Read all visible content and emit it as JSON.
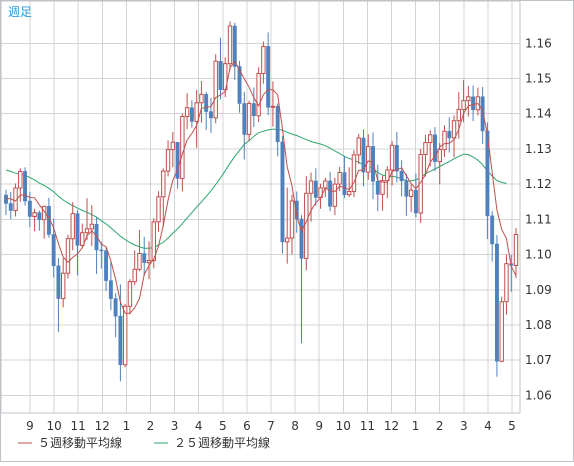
{
  "chart_data": {
    "type": "candlestick",
    "period_label": "週足",
    "ylim": [
      1.055,
      1.172
    ],
    "y_ticks": [
      "1.06",
      "1.07",
      "1.08",
      "1.09",
      "1.10",
      "1.11",
      "1.12",
      "1.13",
      "1.14",
      "1.15",
      "1.16"
    ],
    "x_tick_labels": [
      "9",
      "10",
      "11",
      "12",
      "1",
      "2",
      "3",
      "4",
      "5",
      "6",
      "7",
      "8",
      "9",
      "10",
      "11",
      "12",
      "1",
      "2",
      "3",
      "4",
      "5"
    ],
    "grid": true,
    "colors": {
      "up": "#c0504d",
      "down": "#4f81bd",
      "ma5": "#c0504d",
      "ma25": "#2ea66e",
      "grid": "#d4d4d4",
      "border": "#bfc3c8",
      "axis_text": "#333333",
      "period_label": "#2e9bd6"
    },
    "legend": [
      {
        "label": "５週移動平均線",
        "color": "#c0504d"
      },
      {
        "label": "２５週移動平均線",
        "color": "#2ea66e"
      }
    ],
    "candles": [
      [
        1.1169,
        1.1184,
        1.1112,
        1.1145
      ],
      [
        1.1145,
        1.1178,
        1.1101,
        1.1125
      ],
      [
        1.1125,
        1.1202,
        1.1108,
        1.1189
      ],
      [
        1.1189,
        1.1245,
        1.115,
        1.1236
      ],
      [
        1.1236,
        1.1248,
        1.1139,
        1.1152
      ],
      [
        1.1152,
        1.1178,
        1.1078,
        1.1108
      ],
      [
        1.1108,
        1.113,
        1.1066,
        1.1119
      ],
      [
        1.1119,
        1.1125,
        1.1068,
        1.1099
      ],
      [
        1.1099,
        1.1139,
        1.1045,
        1.1137
      ],
      [
        1.1137,
        1.1161,
        1.1048,
        1.1057
      ],
      [
        1.1057,
        1.1102,
        1.0935,
        1.0968
      ],
      [
        1.0968,
        1.099,
        1.078,
        1.0875
      ],
      [
        1.0875,
        1.099,
        1.085,
        1.0947
      ],
      [
        1.0947,
        1.1056,
        1.0932,
        1.1045
      ],
      [
        1.1045,
        1.1149,
        1.1012,
        1.1116
      ],
      [
        1.1116,
        1.1126,
        1.0941,
        1.1026
      ],
      [
        1.1026,
        1.1088,
        1.102,
        1.1062
      ],
      [
        1.1062,
        1.116,
        1.1041,
        1.1073
      ],
      [
        1.1073,
        1.114,
        1.1024,
        1.1086
      ],
      [
        1.1086,
        1.1105,
        1.0945,
        1.1013
      ],
      [
        1.1013,
        1.1037,
        1.096,
        1.1011
      ],
      [
        1.1011,
        1.102,
        1.0896,
        1.0926
      ],
      [
        1.0926,
        1.098,
        1.0842,
        1.0875
      ],
      [
        1.0875,
        1.089,
        1.0765,
        1.0825
      ],
      [
        1.0825,
        1.0915,
        1.064,
        1.0687
      ],
      [
        1.0687,
        1.086,
        1.068,
        1.0853
      ],
      [
        1.0853,
        1.093,
        1.083,
        1.0923
      ],
      [
        1.0923,
        1.1012,
        1.0913,
        1.0958
      ],
      [
        1.0958,
        1.107,
        1.0953,
        1.1003
      ],
      [
        1.1003,
        1.105,
        1.094,
        1.0977
      ],
      [
        1.0977,
        1.1037,
        1.093,
        1.0983
      ],
      [
        1.0983,
        1.1103,
        1.0961,
        1.1093
      ],
      [
        1.1093,
        1.118,
        1.1065,
        1.1164
      ],
      [
        1.1164,
        1.1245,
        1.1079,
        1.1237
      ],
      [
        1.1237,
        1.1324,
        1.1222,
        1.1298
      ],
      [
        1.1298,
        1.1348,
        1.1248,
        1.1319
      ],
      [
        1.1319,
        1.1308,
        1.1187,
        1.1216
      ],
      [
        1.1216,
        1.14,
        1.1179,
        1.1392
      ],
      [
        1.1392,
        1.1458,
        1.1356,
        1.1417
      ],
      [
        1.1417,
        1.1438,
        1.136,
        1.1378
      ],
      [
        1.1378,
        1.1468,
        1.1303,
        1.1431
      ],
      [
        1.1431,
        1.1493,
        1.1374,
        1.1455
      ],
      [
        1.1455,
        1.1462,
        1.1354,
        1.1406
      ],
      [
        1.1406,
        1.1445,
        1.1345,
        1.1388
      ],
      [
        1.1388,
        1.1569,
        1.1373,
        1.1549
      ],
      [
        1.1549,
        1.1616,
        1.144,
        1.1468
      ],
      [
        1.1468,
        1.156,
        1.1447,
        1.1542
      ],
      [
        1.1542,
        1.1662,
        1.1524,
        1.1649
      ],
      [
        1.1649,
        1.1658,
        1.1496,
        1.1534
      ],
      [
        1.1534,
        1.155,
        1.1403,
        1.1429
      ],
      [
        1.1429,
        1.1462,
        1.127,
        1.1341
      ],
      [
        1.1341,
        1.1437,
        1.1322,
        1.1429
      ],
      [
        1.1429,
        1.1474,
        1.1362,
        1.1394
      ],
      [
        1.1394,
        1.1532,
        1.1376,
        1.1514
      ],
      [
        1.1514,
        1.1605,
        1.1485,
        1.1591
      ],
      [
        1.1591,
        1.1631,
        1.1396,
        1.1418
      ],
      [
        1.1418,
        1.1492,
        1.1363,
        1.1421
      ],
      [
        1.1421,
        1.1429,
        1.1279,
        1.132
      ],
      [
        1.132,
        1.1336,
        1.1003,
        1.1036
      ],
      [
        1.1036,
        1.119,
        1.0974,
        1.1047
      ],
      [
        1.1047,
        1.117,
        1.1,
        1.1152
      ],
      [
        1.1152,
        1.1179,
        1.1062,
        1.1101
      ],
      [
        1.1101,
        1.1112,
        1.0748,
        1.0989
      ],
      [
        1.0989,
        1.1223,
        1.0955,
        1.1174
      ],
      [
        1.1174,
        1.1233,
        1.1093,
        1.1209
      ],
      [
        1.1209,
        1.1245,
        1.1139,
        1.1162
      ],
      [
        1.1162,
        1.1201,
        1.113,
        1.1189
      ],
      [
        1.1189,
        1.1218,
        1.1163,
        1.1209
      ],
      [
        1.1209,
        1.1235,
        1.1123,
        1.1137
      ],
      [
        1.1137,
        1.1218,
        1.1112,
        1.12
      ],
      [
        1.12,
        1.1249,
        1.118,
        1.1233
      ],
      [
        1.1233,
        1.128,
        1.116,
        1.117
      ],
      [
        1.117,
        1.1248,
        1.1163,
        1.1179
      ],
      [
        1.1179,
        1.1296,
        1.1163,
        1.1283
      ],
      [
        1.1283,
        1.1343,
        1.1257,
        1.1331
      ],
      [
        1.1331,
        1.1356,
        1.1193,
        1.1234
      ],
      [
        1.1234,
        1.1342,
        1.1212,
        1.1307
      ],
      [
        1.1307,
        1.1347,
        1.1157,
        1.1208
      ],
      [
        1.1208,
        1.1255,
        1.1123,
        1.1171
      ],
      [
        1.1171,
        1.1224,
        1.1124,
        1.121
      ],
      [
        1.121,
        1.1251,
        1.116,
        1.124
      ],
      [
        1.124,
        1.1322,
        1.1196,
        1.131
      ],
      [
        1.131,
        1.1348,
        1.1205,
        1.1237
      ],
      [
        1.1237,
        1.1268,
        1.1165,
        1.1209
      ],
      [
        1.1209,
        1.123,
        1.111,
        1.1165
      ],
      [
        1.1165,
        1.1199,
        1.1121,
        1.1183
      ],
      [
        1.1183,
        1.123,
        1.1106,
        1.1118
      ],
      [
        1.1118,
        1.13,
        1.109,
        1.1284
      ],
      [
        1.1284,
        1.134,
        1.1222,
        1.1318
      ],
      [
        1.1318,
        1.1353,
        1.125,
        1.134
      ],
      [
        1.134,
        1.1362,
        1.1237,
        1.1264
      ],
      [
        1.1264,
        1.1317,
        1.12,
        1.1298
      ],
      [
        1.1298,
        1.1367,
        1.1277,
        1.135
      ],
      [
        1.135,
        1.139,
        1.129,
        1.1331
      ],
      [
        1.1331,
        1.1395,
        1.1276,
        1.138
      ],
      [
        1.138,
        1.1461,
        1.1329,
        1.1412
      ],
      [
        1.1412,
        1.1495,
        1.1376,
        1.1437
      ],
      [
        1.1437,
        1.1479,
        1.1392,
        1.1448
      ],
      [
        1.1448,
        1.148,
        1.1379,
        1.1411
      ],
      [
        1.1411,
        1.1474,
        1.1395,
        1.1448
      ],
      [
        1.1448,
        1.1476,
        1.1314,
        1.1351
      ],
      [
        1.1351,
        1.1375,
        1.1044,
        1.111
      ],
      [
        1.111,
        1.1123,
        1.098,
        1.103
      ],
      [
        1.103,
        1.1056,
        1.0653,
        1.0697
      ],
      [
        1.0697,
        1.088,
        1.0694,
        1.0866
      ],
      [
        1.0866,
        1.1,
        1.0829,
        1.0974
      ],
      [
        1.0974,
        1.0999,
        1.0894,
        1.0969
      ],
      [
        1.0969,
        1.1075,
        1.0933,
        1.1057
      ]
    ],
    "ma5": [
      1.116,
      1.1158,
      1.1152,
      1.1169,
      1.1169,
      1.1162,
      1.1161,
      1.1141,
      1.1123,
      1.1104,
      1.1076,
      1.1031,
      1.0993,
      1.0978,
      1.0992,
      1.1002,
      1.1019,
      1.1053,
      1.1067,
      1.1052,
      1.103,
      1.1022,
      1.0982,
      1.093,
      1.0865,
      1.0833,
      1.0833,
      1.0849,
      1.0875,
      1.0943,
      1.0969,
      1.0987,
      1.1024,
      1.1083,
      1.1155,
      1.1211,
      1.124,
      1.1286,
      1.1325,
      1.1344,
      1.1367,
      1.1415,
      1.1418,
      1.142,
      1.1446,
      1.1453,
      1.1463,
      1.1531,
      1.1548,
      1.1524,
      1.1499,
      1.1475,
      1.1445,
      1.1422,
      1.1454,
      1.1468,
      1.1468,
      1.1453,
      1.1358,
      1.1249,
      1.1195,
      1.1111,
      1.1065,
      1.1093,
      1.1125,
      1.1147,
      1.1161,
      1.1189,
      1.1181,
      1.1179,
      1.1194,
      1.119,
      1.1184,
      1.1204,
      1.1239,
      1.124,
      1.1266,
      1.1262,
      1.121,
      1.1206,
      1.1205,
      1.1236,
      1.1241,
      1.1246,
      1.1224,
      1.1202,
      1.1187,
      1.1205,
      1.1227,
      1.1262,
      1.128,
      1.1305,
      1.1315,
      1.1316,
      1.1326,
      1.1355,
      1.1401,
      1.1422,
      1.1426,
      1.1429,
      1.1409,
      1.1341,
      1.1233,
      1.1127,
      1.1071,
      1.1045,
      1.0967,
      1.094
    ],
    "ma25": [
      1.124,
      1.1236,
      1.1231,
      1.1228,
      1.1225,
      1.1219,
      1.1212,
      1.1203,
      1.1196,
      1.1188,
      1.1178,
      1.1166,
      1.1155,
      1.1146,
      1.1139,
      1.1132,
      1.1125,
      1.112,
      1.1113,
      1.1106,
      1.1096,
      1.1087,
      1.1076,
      1.1064,
      1.1052,
      1.1042,
      1.1034,
      1.1027,
      1.1022,
      1.1018,
      1.1018,
      1.102,
      1.1027,
      1.1035,
      1.1047,
      1.1061,
      1.1073,
      1.1088,
      1.1104,
      1.1119,
      1.1135,
      1.1149,
      1.1165,
      1.1181,
      1.1199,
      1.1218,
      1.1238,
      1.1259,
      1.1279,
      1.1296,
      1.1313,
      1.1323,
      1.1336,
      1.1346,
      1.135,
      1.1354,
      1.1356,
      1.1356,
      1.1353,
      1.1347,
      1.1342,
      1.1338,
      1.1332,
      1.1326,
      1.1321,
      1.1317,
      1.1314,
      1.1309,
      1.1302,
      1.1294,
      1.1287,
      1.1279,
      1.1273,
      1.1268,
      1.1262,
      1.1255,
      1.1252,
      1.1244,
      1.1233,
      1.1226,
      1.1222,
      1.1222,
      1.122,
      1.1215,
      1.121,
      1.1209,
      1.1212,
      1.1219,
      1.123,
      1.1236,
      1.1243,
      1.125,
      1.1257,
      1.1264,
      1.1272,
      1.1279,
      1.1285,
      1.1284,
      1.1277,
      1.1268,
      1.1255,
      1.1237,
      1.1223,
      1.121,
      1.1205,
      1.1202
    ]
  }
}
